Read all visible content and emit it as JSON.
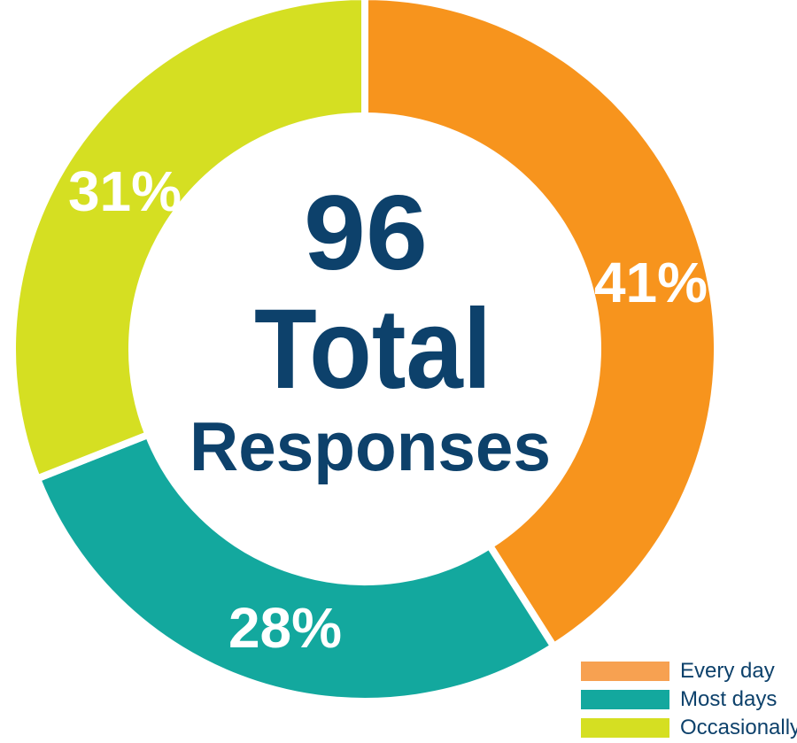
{
  "chart_data": {
    "type": "pie",
    "variant": "donut",
    "center_text": {
      "line1": "96",
      "line2": "Total",
      "line3": "Responses"
    },
    "slices": [
      {
        "label": "Every day",
        "percent": 41,
        "value_label": "41%",
        "color": "#f7941d"
      },
      {
        "label": "Most days",
        "percent": 28,
        "value_label": "28%",
        "color": "#13a89e"
      },
      {
        "label": "Occasionally",
        "percent": 31,
        "value_label": "31%",
        "color": "#d5df22"
      }
    ],
    "legend_placement": "bottom-right"
  },
  "legend": {
    "items": [
      {
        "label": "Every day",
        "color": "#f7a151"
      },
      {
        "label": "Most days",
        "color": "#13a89e"
      },
      {
        "label": "Occasionally",
        "color": "#d5df22"
      }
    ]
  }
}
